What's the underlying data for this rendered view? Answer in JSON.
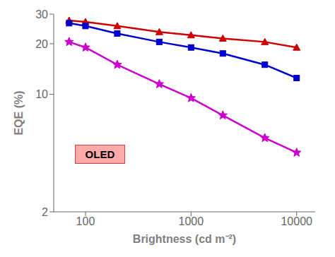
{
  "chart_data": {
    "type": "line",
    "x_label": "Brightness (cd m⁻²)",
    "y_label": "EQE (%)",
    "log": true,
    "grid": false,
    "xlim": [
      50,
      15000
    ],
    "ylim": [
      2,
      30
    ],
    "xticks": [
      100,
      1000,
      10000
    ],
    "yticks": [
      2,
      10,
      20,
      30
    ],
    "x": [
      70,
      100,
      200,
      500,
      1000,
      2000,
      5000,
      10000
    ],
    "series": [
      {
        "color": "#cc0000",
        "marker": "triangle",
        "values": [
          27.5,
          27.0,
          25.5,
          23.5,
          22.5,
          21.5,
          20.5,
          19.0
        ]
      },
      {
        "color": "#0000cc",
        "marker": "square",
        "values": [
          26.5,
          25.5,
          23.0,
          20.5,
          19.0,
          17.5,
          15.0,
          12.5
        ]
      },
      {
        "color": "#cc00cc",
        "marker": "star",
        "values": [
          20.5,
          19.0,
          15.0,
          11.5,
          9.5,
          7.5,
          5.5,
          4.5
        ]
      }
    ],
    "annotations": [
      "OLED"
    ]
  }
}
